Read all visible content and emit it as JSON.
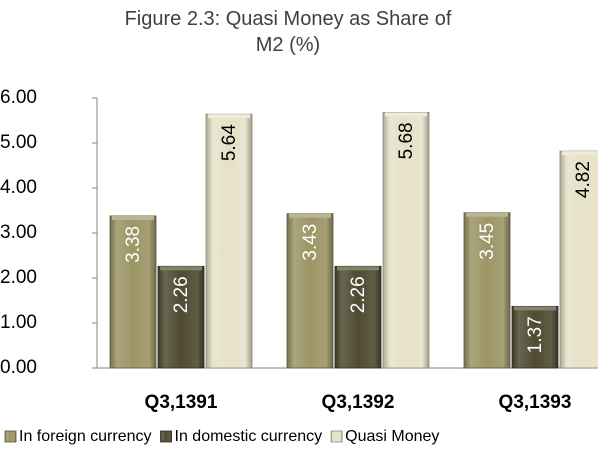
{
  "chart_data": {
    "type": "bar",
    "title": "Figure 2.3: Quasi Money as Share of M2 (%)",
    "categories": [
      "Q3,1391",
      "Q3,1392",
      "Q3,1393"
    ],
    "series": [
      {
        "name": "In foreign currency",
        "color": "#9c9566",
        "values": [
          3.38,
          3.43,
          3.45
        ]
      },
      {
        "name": "In domestic currency",
        "color": "#4f4b31",
        "values": [
          2.26,
          2.26,
          1.37
        ]
      },
      {
        "name": "Quasi Money",
        "color": "#e6e2c8",
        "values": [
          5.64,
          5.68,
          4.82
        ]
      }
    ],
    "ylim": [
      0,
      6
    ],
    "yticks": [
      {
        "value": 0,
        "label": "0.00"
      },
      {
        "value": 1,
        "label": "1.00"
      },
      {
        "value": 2,
        "label": "2.00"
      },
      {
        "value": 3,
        "label": "3.00"
      },
      {
        "value": 4,
        "label": "4.00"
      },
      {
        "value": 5,
        "label": "5.00"
      },
      {
        "value": 6,
        "label": "6.00"
      }
    ],
    "legend": "bottom"
  }
}
